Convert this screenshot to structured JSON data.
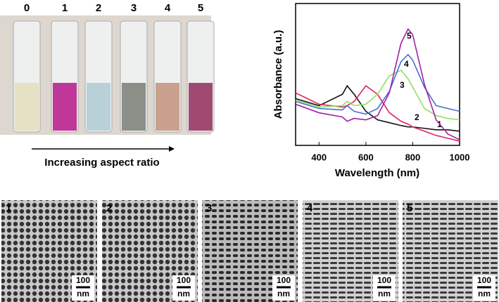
{
  "vials": {
    "labels": [
      "0",
      "1",
      "2",
      "3",
      "4",
      "5"
    ],
    "caption": "Increasing aspect ratio"
  },
  "chart_data": {
    "type": "line",
    "xlabel": "Wavelength (nm)",
    "ylabel": "Absorbance (a.u.)",
    "x": [
      300,
      400,
      500,
      520,
      550,
      600,
      650,
      700,
      750,
      780,
      800,
      850,
      900,
      950,
      1000
    ],
    "xlim": [
      300,
      1000
    ],
    "xticks": [
      400,
      600,
      800,
      1000
    ],
    "ylim": [
      0,
      1
    ],
    "series": [
      {
        "name": "1",
        "color": "#111111",
        "values": [
          0.33,
          0.28,
          0.36,
          0.42,
          0.36,
          0.24,
          0.18,
          0.16,
          0.14,
          0.13,
          0.13,
          0.12,
          0.11,
          0.11,
          0.1
        ]
      },
      {
        "name": "2",
        "color": "#e0245e",
        "values": [
          0.37,
          0.29,
          0.27,
          0.28,
          0.31,
          0.42,
          0.36,
          0.23,
          0.17,
          0.15,
          0.13,
          0.1,
          0.07,
          0.05,
          0.03
        ]
      },
      {
        "name": "3",
        "color": "#8fe060",
        "values": [
          0.32,
          0.27,
          0.28,
          0.31,
          0.28,
          0.29,
          0.36,
          0.49,
          0.53,
          0.47,
          0.41,
          0.26,
          0.21,
          0.19,
          0.18
        ]
      },
      {
        "name": "4",
        "color": "#4a6fd0",
        "values": [
          0.31,
          0.26,
          0.25,
          0.28,
          0.24,
          0.22,
          0.26,
          0.38,
          0.59,
          0.64,
          0.6,
          0.41,
          0.28,
          0.26,
          0.24
        ]
      },
      {
        "name": "5",
        "color": "#a020a8",
        "values": [
          0.29,
          0.23,
          0.2,
          0.17,
          0.19,
          0.18,
          0.21,
          0.37,
          0.72,
          0.82,
          0.78,
          0.43,
          0.18,
          0.08,
          0.04
        ]
      }
    ]
  },
  "tem_panels": [
    {
      "label": "1",
      "scale": "100",
      "unit": "nm"
    },
    {
      "label": "2",
      "scale": "100",
      "unit": "nm"
    },
    {
      "label": "3",
      "scale": "100",
      "unit": "nm"
    },
    {
      "label": "4",
      "scale": "100",
      "unit": "nm"
    },
    {
      "label": "5",
      "scale": "100",
      "unit": "nm"
    }
  ]
}
